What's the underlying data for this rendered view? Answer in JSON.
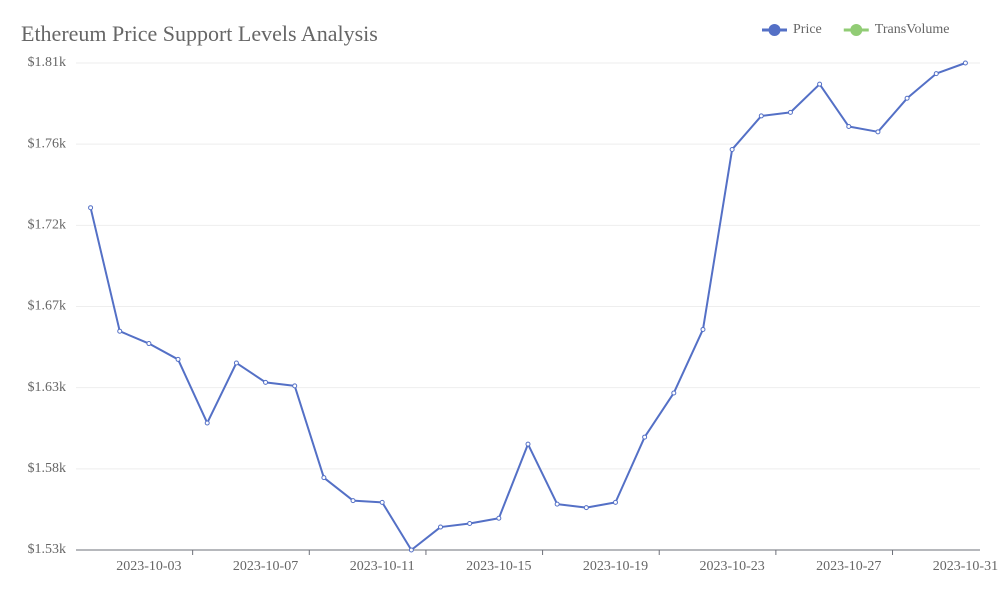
{
  "chart_data": {
    "type": "line",
    "title": "Ethereum Price Support Levels Analysis",
    "legend_items": [
      {
        "name": "Price",
        "color": "#5470c6"
      },
      {
        "name": "TransVolume",
        "color": "#91cc75"
      }
    ],
    "categories": [
      null,
      null,
      "2023-10-03",
      null,
      null,
      null,
      "2023-10-07",
      null,
      null,
      null,
      "2023-10-11",
      null,
      null,
      null,
      "2023-10-15",
      null,
      null,
      null,
      "2023-10-19",
      null,
      null,
      null,
      "2023-10-23",
      null,
      null,
      null,
      "2023-10-27",
      null,
      null,
      null,
      "2023-10-31"
    ],
    "series": [
      {
        "name": "Price",
        "color": "#5470c6",
        "values": [
          1728,
          1658,
          1651,
          1642,
          1606,
          1640,
          1629,
          1627,
          1575,
          1562,
          1561,
          1534,
          1547,
          1549,
          1552,
          1594,
          1560,
          1558,
          1561,
          1598,
          1623,
          1659,
          1761,
          1780,
          1782,
          1798,
          1774,
          1771,
          1790,
          1804,
          1810
        ]
      }
    ],
    "ylim": [
      1534,
      1810
    ],
    "yticks": [
      {
        "value": 1534,
        "label": "$1.53k"
      },
      {
        "value": 1580,
        "label": "$1.58k"
      },
      {
        "value": 1626,
        "label": "$1.63k"
      },
      {
        "value": 1672,
        "label": "$1.67k"
      },
      {
        "value": 1718,
        "label": "$1.72k"
      },
      {
        "value": 1764,
        "label": "$1.76k"
      },
      {
        "value": 1810,
        "label": "$1.81k"
      }
    ],
    "grid": true
  }
}
